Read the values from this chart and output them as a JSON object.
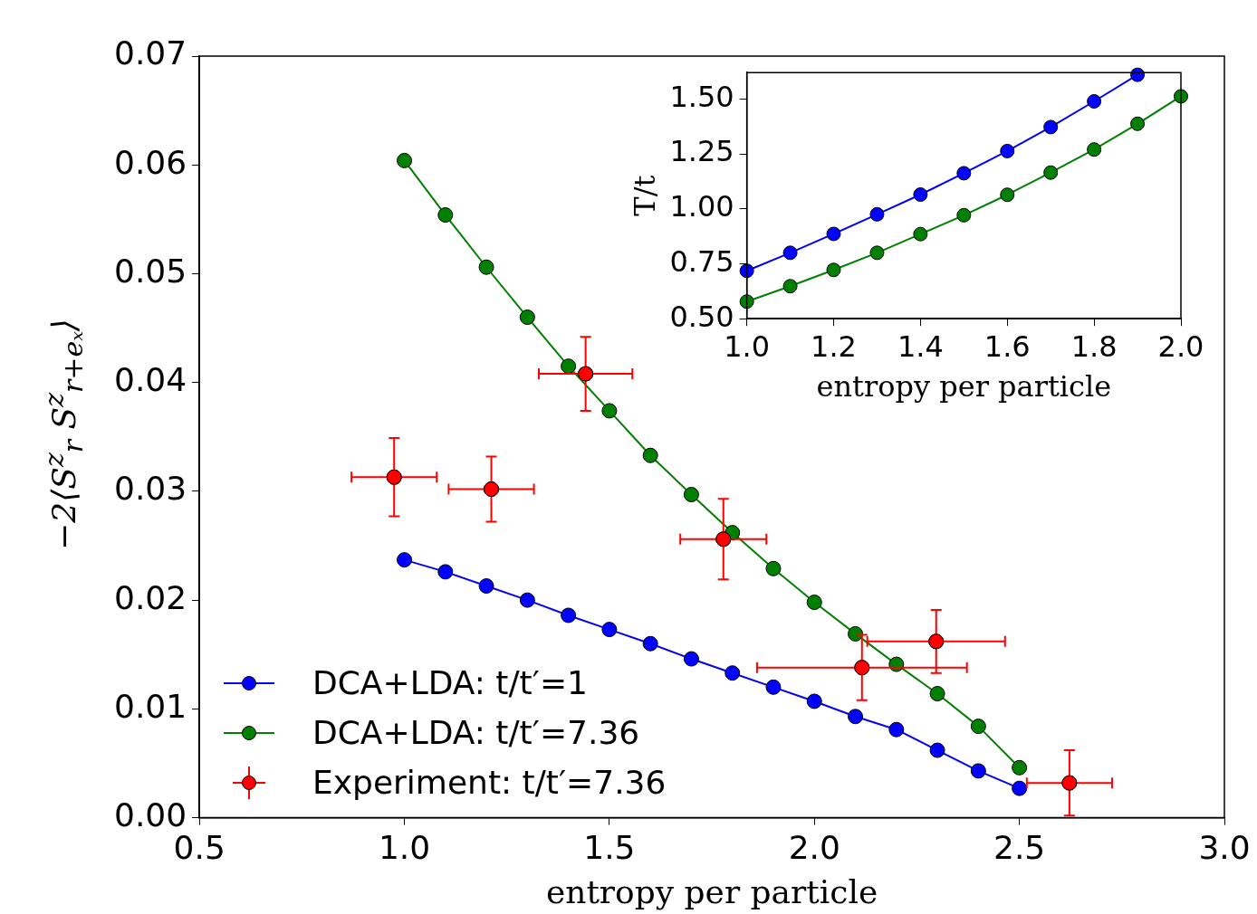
{
  "chart_data": [
    {
      "type": "line",
      "xlabel": "entropy per particle",
      "ylabel": "−2⟨S$^{z}$$_{r}$ S$^{z}$$_{r+eₓ}$⟩",
      "xlim": [
        0.5,
        3.0
      ],
      "ylim": [
        0,
        0.07
      ],
      "xticks": [
        {
          "value": 0.5,
          "label": "0.5"
        },
        {
          "value": 1.0,
          "label": "1.0"
        },
        {
          "value": 1.5,
          "label": "1.5"
        },
        {
          "value": 2.0,
          "label": "2.0"
        },
        {
          "value": 2.5,
          "label": "2.5"
        },
        {
          "value": 3.0,
          "label": "3.0"
        }
      ],
      "yticks": [
        {
          "value": 0,
          "label": "0.00"
        },
        {
          "value": 0.01,
          "label": "0.01"
        },
        {
          "value": 0.02,
          "label": "0.02"
        },
        {
          "value": 0.03,
          "label": "0.03"
        },
        {
          "value": 0.04,
          "label": "0.04"
        },
        {
          "value": 0.05,
          "label": "0.05"
        },
        {
          "value": 0.06,
          "label": "0.06"
        },
        {
          "value": 0.07,
          "label": "0.07"
        }
      ],
      "grid": false,
      "legend": "bottom left",
      "marker": "circle",
      "x": [
        1.0,
        1.1,
        1.2,
        1.3,
        1.4,
        1.5,
        1.6,
        1.7,
        1.8,
        1.9,
        2.0,
        2.1,
        2.2,
        2.3,
        2.4,
        2.5
      ],
      "series": [
        {
          "name": "DCA+LDA: t/t′=1",
          "color": "#0000ff",
          "values": [
            0.0237,
            0.0226,
            0.0213,
            0.02,
            0.0186,
            0.0173,
            0.016,
            0.0146,
            0.0133,
            0.012,
            0.0107,
            0.0093,
            0.0081,
            0.0062,
            0.0043,
            0.0027
          ]
        },
        {
          "name": "DCA+LDA: t/t′=7.36",
          "color": "#008000",
          "values": [
            0.0604,
            0.0554,
            0.0506,
            0.046,
            0.0415,
            0.0374,
            0.0333,
            0.0297,
            0.0262,
            0.0229,
            0.0198,
            0.0169,
            0.0141,
            0.0114,
            0.0084,
            0.0046
          ]
        },
        {
          "type": "scatter",
          "name": "Experiment: t/t′=7.36",
          "color": "#ff0000",
          "x": [
            0.975,
            1.212,
            1.442,
            1.778,
            2.116,
            2.297,
            2.622
          ],
          "values": [
            0.0313,
            0.0302,
            0.0408,
            0.0256,
            0.0138,
            0.0162,
            0.0032
          ],
          "errors": [
            0.0036,
            0.003,
            0.0034,
            0.0037,
            0.003,
            0.0029,
            0.003
          ],
          "xerrors": [
            0.104,
            0.104,
            0.114,
            0.105,
            0.256,
            0.168,
            0.104
          ]
        }
      ]
    },
    {
      "type": "line",
      "xlabel": "entropy per particle",
      "ylabel": "T/t",
      "xlim": [
        1.0,
        2.0
      ],
      "ylim": [
        0.5,
        1.62
      ],
      "xticks": [
        {
          "value": 1.0,
          "label": "1.0"
        },
        {
          "value": 1.2,
          "label": "1.2"
        },
        {
          "value": 1.4,
          "label": "1.4"
        },
        {
          "value": 1.6,
          "label": "1.6"
        },
        {
          "value": 1.8,
          "label": "1.8"
        },
        {
          "value": 2.0,
          "label": "2.0"
        }
      ],
      "yticks": [
        {
          "value": 0.5,
          "label": "0.50"
        },
        {
          "value": 0.75,
          "label": "0.75"
        },
        {
          "value": 1.0,
          "label": "1.00"
        },
        {
          "value": 1.25,
          "label": "1.25"
        },
        {
          "value": 1.5,
          "label": "1.50"
        }
      ],
      "grid": false,
      "marker": "circle",
      "x": [
        1.0,
        1.1,
        1.2,
        1.3,
        1.4,
        1.5,
        1.6,
        1.7,
        1.8,
        1.9,
        2.0
      ],
      "series": [
        {
          "color": "#0000ff",
          "values": [
            0.718,
            0.8,
            0.886,
            0.975,
            1.065,
            1.162,
            1.263,
            1.372,
            1.489,
            1.61,
            null
          ]
        },
        {
          "color": "#008000",
          "values": [
            0.578,
            0.648,
            0.722,
            0.8,
            0.885,
            0.971,
            1.064,
            1.165,
            1.27,
            1.387,
            1.512
          ]
        }
      ]
    }
  ]
}
